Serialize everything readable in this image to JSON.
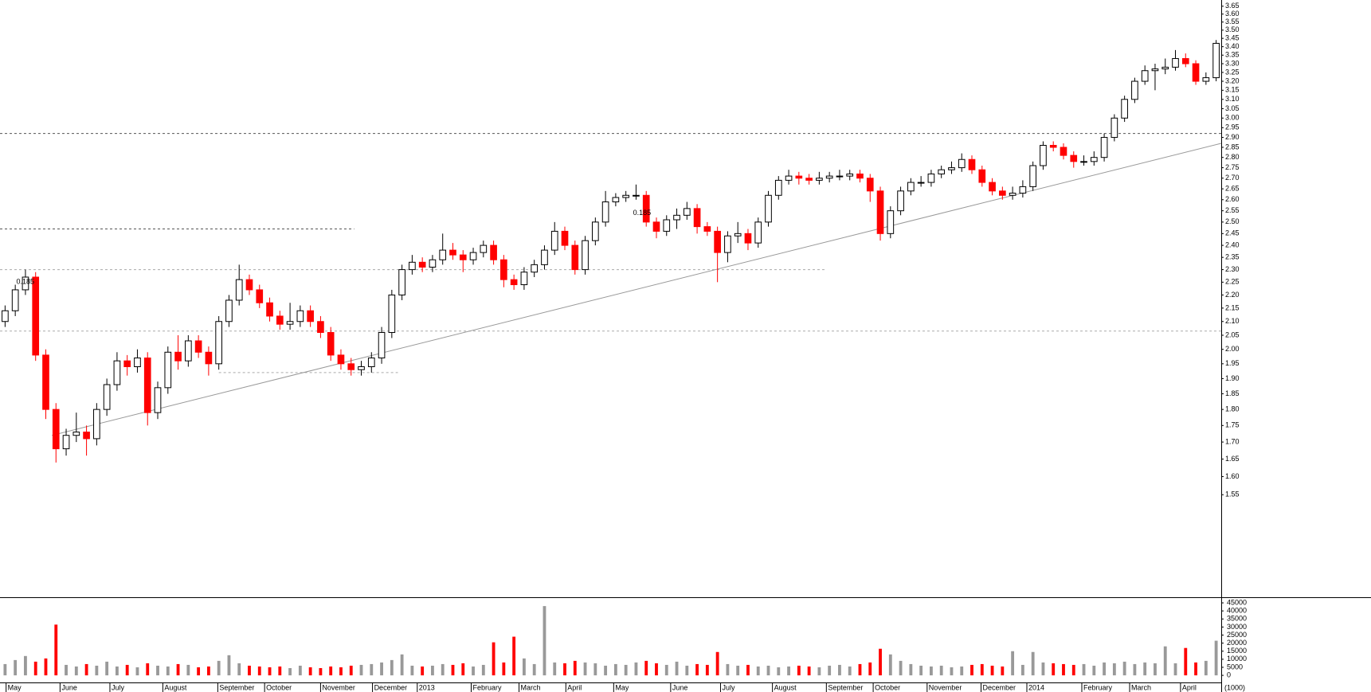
{
  "chart_data": [
    {
      "type": "candlestick",
      "log": true,
      "xlim": [
        0,
        120
      ],
      "ylim": [
        1.295,
        3.69
      ],
      "up_color": "#000000",
      "down_color": "#ff0000",
      "yticks": [
        1.55,
        {
          "value": 1.6,
          "label": "1.60"
        },
        1.65,
        {
          "value": 1.7,
          "label": "1.70"
        },
        1.75,
        {
          "value": 1.8,
          "label": "1.80"
        },
        1.85,
        {
          "value": 1.9,
          "label": "1.90"
        },
        1.95,
        {
          "value": 2.0,
          "label": "2.00"
        },
        2.05,
        {
          "value": 2.1,
          "label": "2.10"
        },
        2.15,
        {
          "value": 2.2,
          "label": "2.20"
        },
        2.25,
        {
          "value": 2.3,
          "label": "2.30"
        },
        2.35,
        {
          "value": 2.4,
          "label": "2.40"
        },
        2.45,
        {
          "value": 2.5,
          "label": "2.50"
        },
        2.55,
        {
          "value": 2.6,
          "label": "2.60"
        },
        2.65,
        {
          "value": 2.7,
          "label": "2.70"
        },
        2.75,
        {
          "value": 2.8,
          "label": "2.80"
        },
        2.85,
        {
          "value": 2.9,
          "label": "2.90"
        },
        2.95,
        {
          "value": 3.0,
          "label": "3.00"
        },
        3.05,
        {
          "value": 3.1,
          "label": "3.10"
        },
        3.15,
        {
          "value": 3.2,
          "label": "3.20"
        },
        3.25,
        {
          "value": 3.3,
          "label": "3.30"
        },
        3.35,
        {
          "value": 3.4,
          "label": "3.40"
        },
        3.45,
        {
          "value": 3.5,
          "label": "3.50"
        },
        3.55,
        {
          "value": 3.6,
          "label": "3.60"
        },
        3.65
      ],
      "open": [
        2.1,
        2.14,
        2.22,
        2.27,
        1.98,
        1.8,
        1.68,
        1.72,
        1.73,
        1.71,
        1.8,
        1.88,
        1.96,
        1.94,
        1.97,
        1.79,
        1.87,
        1.99,
        1.96,
        2.03,
        1.99,
        1.95,
        2.1,
        2.18,
        2.26,
        2.22,
        2.17,
        2.12,
        2.09,
        2.1,
        2.14,
        2.1,
        2.06,
        1.98,
        1.95,
        1.93,
        1.94,
        1.97,
        2.06,
        2.2,
        2.3,
        2.33,
        2.31,
        2.34,
        2.38,
        2.36,
        2.34,
        2.37,
        2.4,
        2.34,
        2.26,
        2.24,
        2.29,
        2.32,
        2.38,
        2.46,
        2.4,
        2.3,
        2.42,
        2.5,
        2.59,
        2.61,
        2.62,
        2.62,
        2.5,
        2.46,
        2.51,
        2.53,
        2.56,
        2.48,
        2.46,
        2.37,
        2.44,
        2.45,
        2.41,
        2.5,
        2.62,
        2.69,
        2.71,
        2.7,
        2.69,
        2.7,
        2.71,
        2.71,
        2.72,
        2.7,
        2.64,
        2.45,
        2.55,
        2.64,
        2.68,
        2.68,
        2.72,
        2.74,
        2.75,
        2.79,
        2.74,
        2.68,
        2.64,
        2.62,
        2.63,
        2.66,
        2.76,
        2.86,
        2.85,
        2.81,
        2.78,
        2.78,
        2.8,
        2.9,
        3.0,
        3.1,
        3.2,
        3.26,
        3.27,
        3.28,
        3.33,
        3.3,
        3.2,
        3.22
      ],
      "high": [
        2.16,
        2.24,
        2.3,
        2.29,
        2.0,
        1.82,
        1.74,
        1.79,
        1.75,
        1.82,
        1.9,
        1.99,
        1.98,
        2.0,
        1.99,
        1.89,
        2.01,
        2.05,
        2.05,
        2.05,
        2.01,
        2.12,
        2.2,
        2.32,
        2.28,
        2.24,
        2.19,
        2.14,
        2.17,
        2.16,
        2.16,
        2.12,
        2.08,
        2.0,
        1.97,
        1.96,
        1.99,
        2.08,
        2.22,
        2.32,
        2.36,
        2.35,
        2.36,
        2.45,
        2.41,
        2.38,
        2.39,
        2.42,
        2.42,
        2.36,
        2.28,
        2.31,
        2.34,
        2.4,
        2.5,
        2.48,
        2.42,
        2.44,
        2.52,
        2.64,
        2.63,
        2.64,
        2.67,
        2.64,
        2.52,
        2.53,
        2.56,
        2.59,
        2.58,
        2.5,
        2.48,
        2.46,
        2.5,
        2.47,
        2.52,
        2.64,
        2.71,
        2.74,
        2.73,
        2.72,
        2.73,
        2.73,
        2.74,
        2.74,
        2.74,
        2.72,
        2.66,
        2.57,
        2.66,
        2.7,
        2.71,
        2.74,
        2.76,
        2.78,
        2.82,
        2.81,
        2.76,
        2.7,
        2.66,
        2.66,
        2.69,
        2.78,
        2.88,
        2.88,
        2.87,
        2.83,
        2.81,
        2.83,
        2.92,
        3.02,
        3.12,
        3.22,
        3.29,
        3.3,
        3.33,
        3.38,
        3.36,
        3.32,
        3.25,
        3.44
      ],
      "low": [
        2.08,
        2.12,
        2.2,
        1.96,
        1.77,
        1.64,
        1.66,
        1.7,
        1.66,
        1.69,
        1.78,
        1.86,
        1.91,
        1.92,
        1.75,
        1.77,
        1.85,
        1.93,
        1.94,
        1.97,
        1.91,
        1.93,
        2.08,
        2.16,
        2.2,
        2.15,
        2.1,
        2.07,
        2.07,
        2.08,
        2.08,
        2.04,
        1.96,
        1.93,
        1.91,
        1.91,
        1.92,
        1.95,
        2.04,
        2.18,
        2.28,
        2.29,
        2.29,
        2.32,
        2.34,
        2.29,
        2.32,
        2.35,
        2.32,
        2.23,
        2.22,
        2.22,
        2.27,
        2.3,
        2.36,
        2.38,
        2.28,
        2.28,
        2.4,
        2.48,
        2.57,
        2.59,
        2.6,
        2.48,
        2.43,
        2.44,
        2.47,
        2.51,
        2.45,
        2.44,
        2.25,
        2.33,
        2.41,
        2.38,
        2.39,
        2.48,
        2.6,
        2.67,
        2.67,
        2.67,
        2.67,
        2.68,
        2.69,
        2.69,
        2.68,
        2.59,
        2.42,
        2.43,
        2.53,
        2.62,
        2.66,
        2.66,
        2.7,
        2.72,
        2.73,
        2.72,
        2.66,
        2.62,
        2.6,
        2.6,
        2.61,
        2.64,
        2.74,
        2.83,
        2.79,
        2.75,
        2.76,
        2.76,
        2.78,
        2.88,
        2.98,
        3.08,
        3.18,
        3.15,
        3.24,
        3.26,
        3.28,
        3.18,
        3.18,
        3.2
      ],
      "close": [
        2.14,
        2.22,
        2.27,
        1.98,
        1.8,
        1.68,
        1.72,
        1.73,
        1.71,
        1.8,
        1.88,
        1.96,
        1.94,
        1.97,
        1.79,
        1.87,
        1.99,
        1.96,
        2.03,
        1.99,
        1.95,
        2.1,
        2.18,
        2.26,
        2.22,
        2.17,
        2.12,
        2.09,
        2.1,
        2.14,
        2.1,
        2.06,
        1.98,
        1.95,
        1.93,
        1.94,
        1.97,
        2.06,
        2.2,
        2.3,
        2.33,
        2.31,
        2.34,
        2.38,
        2.36,
        2.34,
        2.37,
        2.4,
        2.34,
        2.26,
        2.24,
        2.29,
        2.32,
        2.38,
        2.46,
        2.4,
        2.3,
        2.42,
        2.5,
        2.59,
        2.61,
        2.62,
        2.62,
        2.5,
        2.46,
        2.51,
        2.53,
        2.56,
        2.48,
        2.46,
        2.37,
        2.44,
        2.45,
        2.41,
        2.5,
        2.62,
        2.69,
        2.71,
        2.7,
        2.69,
        2.7,
        2.71,
        2.71,
        2.72,
        2.7,
        2.64,
        2.45,
        2.55,
        2.64,
        2.68,
        2.68,
        2.72,
        2.74,
        2.75,
        2.79,
        2.74,
        2.68,
        2.64,
        2.62,
        2.63,
        2.66,
        2.76,
        2.86,
        2.85,
        2.81,
        2.78,
        2.78,
        2.8,
        2.9,
        3.0,
        3.1,
        3.2,
        3.26,
        3.27,
        3.28,
        3.33,
        3.3,
        3.2,
        3.22,
        3.42
      ],
      "hlines": [
        {
          "y": 2.92,
          "color": "#555555"
        },
        {
          "y": 2.47,
          "x": [
            0,
            34.8
          ],
          "color": "#555555"
        },
        {
          "y": 2.3,
          "x": [
            0,
            81.2
          ],
          "color": "#aaaaaa"
        },
        {
          "y": 2.065,
          "color": "#aaaaaa"
        },
        {
          "y": 1.92,
          "x": [
            21.5,
            39.1
          ],
          "color": "#aaaaaa"
        }
      ],
      "trendline": {
        "x": [
          5.1,
          120
        ],
        "y": [
          1.72,
          2.87
        ],
        "color": "#999999"
      },
      "annotations": [
        {
          "text": "0.185",
          "x": 1.6,
          "y": 2.25,
          "color": "#888888"
        },
        {
          "text": "0.185",
          "x": 62.2,
          "y": 2.54,
          "color": "#3344ff"
        }
      ]
    },
    {
      "type": "volume",
      "xlim": [
        0,
        120
      ],
      "ylim": [
        -4400,
        47500
      ],
      "up_color": "#999999",
      "down_color": "#ff0000",
      "yticks": [
        0,
        5000,
        10000,
        15000,
        20000,
        25000,
        30000,
        35000,
        40000,
        45000
      ],
      "unit_label": "(1000)",
      "xticks": [
        {
          "value": 0.6,
          "label": "May"
        },
        {
          "value": 5.9,
          "label": "June"
        },
        {
          "value": 10.8,
          "label": "July"
        },
        {
          "value": 16,
          "label": "August"
        },
        {
          "value": 21.4,
          "label": "September"
        },
        {
          "value": 26,
          "label": "October"
        },
        {
          "value": 31.5,
          "label": "November"
        },
        {
          "value": 36.6,
          "label": "December"
        },
        {
          "value": 41,
          "label": "2013"
        },
        {
          "value": 46.3,
          "label": "February"
        },
        {
          "value": 51,
          "label": "March"
        },
        {
          "value": 55.6,
          "label": "April"
        },
        {
          "value": 60.3,
          "label": "May"
        },
        {
          "value": 65.9,
          "label": "June"
        },
        {
          "value": 70.8,
          "label": "July"
        },
        {
          "value": 75.9,
          "label": "August"
        },
        {
          "value": 81.2,
          "label": "September"
        },
        {
          "value": 85.8,
          "label": "October"
        },
        {
          "value": 91.1,
          "label": "November"
        },
        {
          "value": 96.4,
          "label": "December"
        },
        {
          "value": 100.9,
          "label": "2014"
        },
        {
          "value": 106.3,
          "label": "February"
        },
        {
          "value": 111,
          "label": "March"
        },
        {
          "value": 116,
          "label": "April"
        }
      ],
      "values": [
        7000,
        9500,
        12000,
        8500,
        10500,
        31500,
        6500,
        5500,
        7000,
        6000,
        8500,
        5500,
        6500,
        5000,
        7500,
        6000,
        5500,
        7000,
        6500,
        5000,
        5500,
        9000,
        12500,
        7500,
        6000,
        5500,
        5000,
        5500,
        4500,
        6000,
        5000,
        4500,
        5500,
        5000,
        6000,
        6500,
        7000,
        8000,
        9500,
        13000,
        6000,
        5500,
        6000,
        7000,
        6500,
        7500,
        5500,
        6500,
        20500,
        8000,
        24000,
        10500,
        7000,
        43000,
        8000,
        7500,
        9000,
        8000,
        7500,
        6000,
        7000,
        6500,
        8000,
        9000,
        7500,
        6500,
        8500,
        6000,
        7000,
        6500,
        14500,
        7000,
        6000,
        6500,
        5500,
        6000,
        5000,
        5500,
        6000,
        5500,
        5000,
        6000,
        6500,
        5500,
        7000,
        8000,
        16500,
        13000,
        9000,
        7000,
        6000,
        5500,
        6000,
        5000,
        5500,
        6500,
        7000,
        6000,
        5500,
        15000,
        6500,
        14500,
        8000,
        7500,
        7000,
        6500,
        7000,
        6000,
        8000,
        7500,
        8500,
        7000,
        8000,
        7500,
        18000,
        7500,
        17000,
        8000,
        9000,
        21500
      ]
    }
  ]
}
